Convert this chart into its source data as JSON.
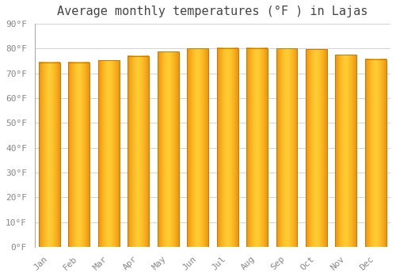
{
  "title": "Average monthly temperatures (°F ) in Lajas",
  "months": [
    "Jan",
    "Feb",
    "Mar",
    "Apr",
    "May",
    "Jun",
    "Jul",
    "Aug",
    "Sep",
    "Oct",
    "Nov",
    "Dec"
  ],
  "values": [
    74.5,
    74.5,
    75.3,
    77.0,
    78.8,
    80.0,
    80.2,
    80.2,
    80.0,
    79.7,
    77.5,
    75.7
  ],
  "bar_color_center": "#FFCC33",
  "bar_color_edge": "#F0900A",
  "bar_outline_color": "#C87800",
  "background_color": "#ffffff",
  "plot_bg_color": "#ffffff",
  "grid_color": "#cccccc",
  "title_fontsize": 11,
  "tick_fontsize": 8,
  "ylim": [
    0,
    90
  ],
  "yticks": [
    0,
    10,
    20,
    30,
    40,
    50,
    60,
    70,
    80,
    90
  ],
  "ytick_labels": [
    "0°F",
    "10°F",
    "20°F",
    "30°F",
    "40°F",
    "50°F",
    "60°F",
    "70°F",
    "80°F",
    "90°F"
  ]
}
